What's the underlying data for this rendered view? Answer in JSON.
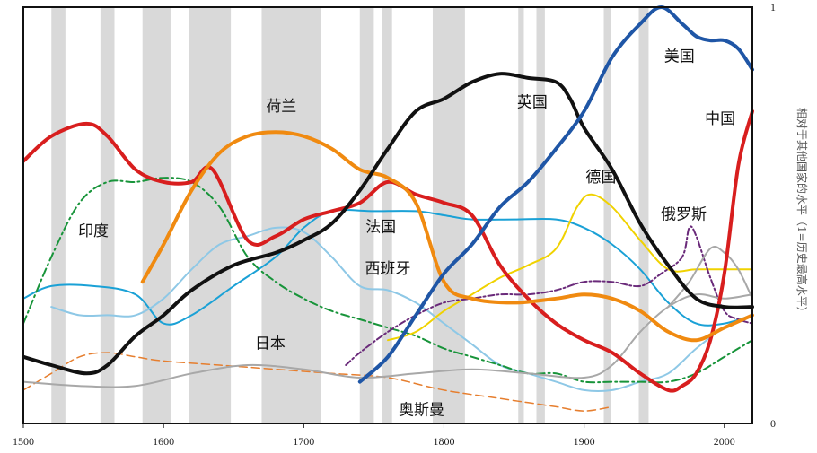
{
  "chart_data": {
    "type": "line",
    "title": "",
    "xlabel": "",
    "ylabel": "相对于其他国家的水平（1=历史最高水平）",
    "xlim": [
      1500,
      2020
    ],
    "ylim": [
      0,
      1
    ],
    "x_ticks": [
      "1500",
      "1600",
      "1700",
      "1800",
      "1900",
      "2000"
    ],
    "y_ticks": [
      "1",
      "0"
    ],
    "grid": false,
    "shaded_periods": [
      [
        1520,
        1530
      ],
      [
        1555,
        1565
      ],
      [
        1585,
        1605
      ],
      [
        1618,
        1648
      ],
      [
        1670,
        1712
      ],
      [
        1740,
        1750
      ],
      [
        1756,
        1763
      ],
      [
        1792,
        1815
      ],
      [
        1853,
        1857
      ],
      [
        1866,
        1872
      ],
      [
        1914,
        1919
      ],
      [
        1939,
        1946
      ]
    ],
    "series": [
      {
        "name": "中国",
        "color": "#d81e1e",
        "width": 4,
        "x": [
          1500,
          1520,
          1545,
          1560,
          1580,
          1600,
          1620,
          1635,
          1660,
          1680,
          1700,
          1720,
          1740,
          1760,
          1780,
          1800,
          1820,
          1840,
          1860,
          1880,
          1900,
          1920,
          1940,
          1960,
          1970,
          1980,
          1990,
          2000,
          2010,
          2020
        ],
        "y": [
          0.63,
          0.69,
          0.72,
          0.69,
          0.61,
          0.58,
          0.58,
          0.61,
          0.44,
          0.45,
          0.49,
          0.51,
          0.53,
          0.58,
          0.55,
          0.53,
          0.5,
          0.38,
          0.3,
          0.24,
          0.2,
          0.17,
          0.12,
          0.08,
          0.09,
          0.12,
          0.2,
          0.36,
          0.62,
          0.75
        ]
      },
      {
        "name": "荷兰",
        "color": "#f08a10",
        "width": 4,
        "x": [
          1585,
          1600,
          1620,
          1640,
          1660,
          1680,
          1700,
          1720,
          1740,
          1760,
          1780,
          1800,
          1820,
          1850,
          1880,
          1900,
          1920,
          1940,
          1960,
          1980,
          2000,
          2020
        ],
        "y": [
          0.34,
          0.43,
          0.56,
          0.65,
          0.69,
          0.7,
          0.69,
          0.66,
          0.61,
          0.59,
          0.53,
          0.34,
          0.3,
          0.29,
          0.3,
          0.31,
          0.3,
          0.27,
          0.22,
          0.2,
          0.23,
          0.26
        ]
      },
      {
        "name": "英国",
        "color": "#111111",
        "width": 4,
        "x": [
          1500,
          1520,
          1545,
          1560,
          1580,
          1600,
          1620,
          1650,
          1680,
          1700,
          1720,
          1740,
          1760,
          1780,
          1800,
          1820,
          1840,
          1860,
          1880,
          1890,
          1900,
          1920,
          1940,
          1960,
          1980,
          2000,
          2020
        ],
        "y": [
          0.16,
          0.14,
          0.12,
          0.14,
          0.21,
          0.26,
          0.32,
          0.38,
          0.41,
          0.44,
          0.48,
          0.56,
          0.66,
          0.75,
          0.78,
          0.82,
          0.84,
          0.83,
          0.82,
          0.78,
          0.71,
          0.61,
          0.48,
          0.38,
          0.3,
          0.28,
          0.28
        ]
      },
      {
        "name": "美国",
        "color": "#1f56a6",
        "width": 4,
        "x": [
          1740,
          1760,
          1780,
          1800,
          1820,
          1840,
          1860,
          1880,
          1900,
          1920,
          1940,
          1955,
          1970,
          1980,
          1990,
          2000,
          2010,
          2020
        ],
        "y": [
          0.1,
          0.16,
          0.26,
          0.36,
          0.43,
          0.52,
          0.58,
          0.66,
          0.75,
          0.88,
          0.96,
          1.0,
          0.96,
          0.93,
          0.92,
          0.92,
          0.9,
          0.85
        ]
      },
      {
        "name": "法国",
        "color": "#1aa1d6",
        "width": 2,
        "x": [
          1500,
          1520,
          1550,
          1580,
          1600,
          1620,
          1650,
          1680,
          1700,
          1720,
          1750,
          1780,
          1800,
          1820,
          1850,
          1880,
          1900,
          1920,
          1940,
          1960,
          1980,
          2000,
          2020
        ],
        "y": [
          0.3,
          0.33,
          0.33,
          0.31,
          0.24,
          0.26,
          0.33,
          0.4,
          0.47,
          0.51,
          0.51,
          0.51,
          0.5,
          0.49,
          0.49,
          0.49,
          0.47,
          0.43,
          0.37,
          0.29,
          0.24,
          0.24,
          0.26
        ]
      },
      {
        "name": "西班牙",
        "color": "#8ec8e6",
        "width": 2,
        "x": [
          1520,
          1540,
          1560,
          1580,
          1600,
          1620,
          1640,
          1660,
          1680,
          1700,
          1720,
          1740,
          1760,
          1780,
          1800,
          1820,
          1840,
          1860,
          1880,
          1900,
          1920,
          1940,
          1960,
          1980,
          2000,
          2020
        ],
        "y": [
          0.28,
          0.26,
          0.26,
          0.26,
          0.3,
          0.37,
          0.43,
          0.45,
          0.47,
          0.46,
          0.4,
          0.33,
          0.32,
          0.29,
          0.24,
          0.19,
          0.14,
          0.12,
          0.1,
          0.08,
          0.08,
          0.1,
          0.12,
          0.18,
          0.23,
          0.26
        ]
      },
      {
        "name": "印度",
        "color": "#18943a",
        "width": 2,
        "dash": "9,4,2,4",
        "x": [
          1500,
          1520,
          1540,
          1560,
          1580,
          1600,
          1620,
          1640,
          1660,
          1680,
          1700,
          1720,
          1740,
          1760,
          1780,
          1800,
          1820,
          1840,
          1860,
          1880,
          1900,
          1920,
          1940,
          1960,
          1980,
          2000,
          2020
        ],
        "y": [
          0.24,
          0.4,
          0.53,
          0.58,
          0.58,
          0.59,
          0.58,
          0.52,
          0.4,
          0.34,
          0.3,
          0.27,
          0.25,
          0.23,
          0.21,
          0.18,
          0.16,
          0.14,
          0.12,
          0.12,
          0.1,
          0.1,
          0.1,
          0.1,
          0.12,
          0.16,
          0.2
        ]
      },
      {
        "name": "德国",
        "color": "#f0d200",
        "width": 2,
        "x": [
          1760,
          1780,
          1800,
          1820,
          1840,
          1860,
          1880,
          1895,
          1905,
          1920,
          1940,
          1960,
          1980,
          2000,
          2020
        ],
        "y": [
          0.2,
          0.22,
          0.27,
          0.31,
          0.35,
          0.38,
          0.42,
          0.52,
          0.55,
          0.52,
          0.44,
          0.37,
          0.37,
          0.37,
          0.37
        ]
      },
      {
        "name": "俄罗斯",
        "color": "#6a2a7a",
        "width": 2,
        "dash": "7,3,2,3",
        "x": [
          1730,
          1740,
          1760,
          1780,
          1800,
          1820,
          1840,
          1860,
          1880,
          1900,
          1920,
          1940,
          1955,
          1970,
          1975,
          1980,
          1990,
          2000,
          2010,
          2020
        ],
        "y": [
          0.14,
          0.17,
          0.22,
          0.26,
          0.29,
          0.3,
          0.31,
          0.31,
          0.32,
          0.34,
          0.34,
          0.33,
          0.36,
          0.4,
          0.47,
          0.45,
          0.35,
          0.27,
          0.25,
          0.24
        ]
      },
      {
        "name": "日本",
        "color": "#a8a8a8",
        "width": 2,
        "x": [
          1500,
          1540,
          1580,
          1620,
          1660,
          1700,
          1740,
          1780,
          1820,
          1860,
          1900,
          1920,
          1940,
          1960,
          1980,
          2000,
          2020
        ],
        "y": [
          0.1,
          0.09,
          0.09,
          0.12,
          0.14,
          0.13,
          0.11,
          0.12,
          0.13,
          0.12,
          0.11,
          0.14,
          0.22,
          0.28,
          0.31,
          0.3,
          0.31
        ]
      },
      {
        "name": "日本-高点",
        "color": "#a8a8a8",
        "width": 2,
        "x": [
          1960,
          1975,
          1990,
          2000,
          2010,
          2020
        ],
        "y": [
          0.28,
          0.34,
          0.42,
          0.41,
          0.37,
          0.3
        ]
      },
      {
        "name": "奥斯曼",
        "color": "#e67e2e",
        "width": 1.5,
        "dash": "9,5",
        "x": [
          1500,
          1520,
          1540,
          1560,
          1580,
          1600,
          1640,
          1680,
          1720,
          1760,
          1800,
          1840,
          1860,
          1880,
          1900,
          1920
        ],
        "y": [
          0.08,
          0.12,
          0.16,
          0.17,
          0.16,
          0.15,
          0.14,
          0.13,
          0.12,
          0.11,
          0.08,
          0.06,
          0.05,
          0.04,
          0.03,
          0.04
        ]
      }
    ],
    "labels": [
      {
        "text": "美国",
        "x": 1968,
        "y": 0.87
      },
      {
        "text": "中国",
        "x": 1997,
        "y": 0.72
      },
      {
        "text": "英国",
        "x": 1863,
        "y": 0.76
      },
      {
        "text": "荷兰",
        "x": 1684,
        "y": 0.75
      },
      {
        "text": "德国",
        "x": 1912,
        "y": 0.58
      },
      {
        "text": "俄罗斯",
        "x": 1971,
        "y": 0.49
      },
      {
        "text": "法国",
        "x": 1755,
        "y": 0.46
      },
      {
        "text": "印度",
        "x": 1550,
        "y": 0.45
      },
      {
        "text": "西班牙",
        "x": 1760,
        "y": 0.36
      },
      {
        "text": "日本",
        "x": 1676,
        "y": 0.18
      },
      {
        "text": "奥斯曼",
        "x": 1784,
        "y": 0.02
      }
    ]
  }
}
